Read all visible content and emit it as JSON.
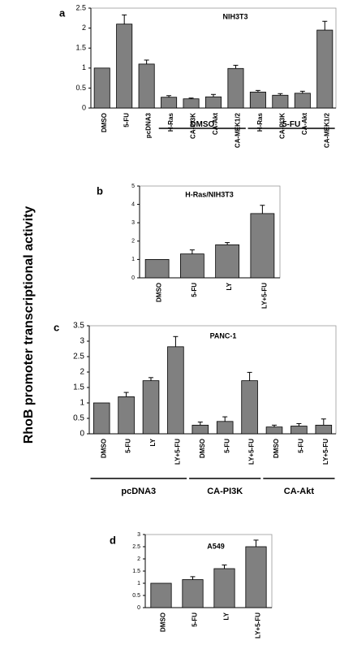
{
  "figure": {
    "ylabel": "RhoB promoter transcriptional activity"
  },
  "chart_data": [
    {
      "panel_label": "a",
      "type": "bar",
      "title": "NIH3T3",
      "categories": [
        "DMSO",
        "5-FU",
        "pcDNA3",
        "H-Ras",
        "CA-PI3K",
        "CA-Akt",
        "CA-MEK1/2",
        "H-Ras",
        "CA-PI3K",
        "CA-Akt",
        "CA-MEK1/2"
      ],
      "values": [
        1.0,
        2.1,
        1.1,
        0.27,
        0.23,
        0.28,
        0.99,
        0.4,
        0.32,
        0.37,
        1.95
      ],
      "errors": [
        0,
        0.23,
        0.1,
        0.04,
        0.02,
        0.06,
        0.08,
        0.04,
        0.04,
        0.05,
        0.22
      ],
      "ylim": [
        0,
        2.5
      ],
      "yticks": [
        0,
        0.5,
        1,
        1.5,
        2,
        2.5
      ],
      "ytick_labels": [
        "0",
        "0.5",
        "1",
        "1.5",
        "2",
        "2.5"
      ],
      "groups": [
        {
          "label": "DMSO",
          "categories": [
            3,
            6
          ]
        },
        {
          "label": "5-FU",
          "categories": [
            7,
            10
          ]
        }
      ],
      "grid": false,
      "bar_color": "#808080"
    },
    {
      "panel_label": "b",
      "type": "bar",
      "title": "H-Ras/NIH3T3",
      "categories": [
        "DMSO",
        "5-FU",
        "LY",
        "LY+5-FU"
      ],
      "values": [
        1.0,
        1.3,
        1.8,
        3.5
      ],
      "errors": [
        0,
        0.22,
        0.12,
        0.45
      ],
      "ylim": [
        0,
        5
      ],
      "yticks": [
        0,
        1,
        2,
        3,
        4,
        5
      ],
      "ytick_labels": [
        "0",
        "1",
        "2",
        "3",
        "4",
        "5"
      ],
      "groups": [],
      "grid": false,
      "bar_color": "#808080"
    },
    {
      "panel_label": "c",
      "type": "bar",
      "title": "PANC-1",
      "categories": [
        "DMSO",
        "5-FU",
        "LY",
        "LY+5-FU",
        "DMSO",
        "5-FU",
        "LY+5-FU",
        "DMSO",
        "5-FU",
        "LY+5-FU"
      ],
      "values": [
        1.0,
        1.2,
        1.72,
        2.82,
        0.28,
        0.4,
        1.72,
        0.22,
        0.25,
        0.28
      ],
      "errors": [
        0,
        0.14,
        0.1,
        0.33,
        0.1,
        0.15,
        0.27,
        0.06,
        0.08,
        0.2
      ],
      "ylim": [
        0,
        3.5
      ],
      "yticks": [
        0,
        0.5,
        1,
        1.5,
        2,
        2.5,
        3,
        3.5
      ],
      "ytick_labels": [
        "0",
        "0.5",
        "1",
        "1.5",
        "2",
        "2.5",
        "3",
        "3.5"
      ],
      "groups": [
        {
          "label": "pcDNA3",
          "categories": [
            0,
            3
          ]
        },
        {
          "label": "CA-PI3K",
          "categories": [
            4,
            6
          ]
        },
        {
          "label": "CA-Akt",
          "categories": [
            7,
            9
          ]
        }
      ],
      "grid": false,
      "bar_color": "#808080"
    },
    {
      "panel_label": "d",
      "type": "bar",
      "title": "A549",
      "categories": [
        "DMSO",
        "5-FU",
        "LY",
        "LY+5-FU"
      ],
      "values": [
        1.0,
        1.15,
        1.6,
        2.5
      ],
      "errors": [
        0,
        0.12,
        0.15,
        0.27
      ],
      "ylim": [
        0,
        3
      ],
      "yticks": [
        0,
        0.5,
        1,
        1.5,
        2,
        2.5,
        3
      ],
      "ytick_labels": [
        "0",
        "0.5",
        "1",
        "1.5",
        "2",
        "2.5",
        "3"
      ],
      "groups": [],
      "grid": false,
      "bar_color": "#808080"
    }
  ]
}
